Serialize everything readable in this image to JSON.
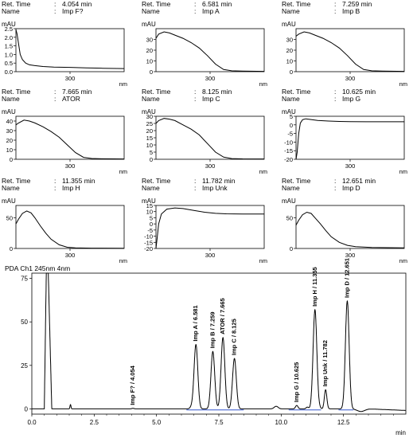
{
  "labels": {
    "ret_time": "Ret. Time",
    "name": "Name",
    "mau": "mAU",
    "nm": "nm",
    "x_tick": "300",
    "main_header": "PDA Ch1 245nm 4nm",
    "main_xlabel": "min"
  },
  "chart_data": [
    {
      "type": "line",
      "ret_time": "4.054 min",
      "name": "Imp F?",
      "xlim": [
        200,
        400
      ],
      "ylim": [
        0,
        2.5
      ],
      "yticks": [
        "0.0",
        "0.5",
        "1.0",
        "1.5",
        "2.0",
        "2.5"
      ],
      "x": [
        200,
        202,
        205,
        208,
        212,
        218,
        225,
        235,
        250,
        270,
        300,
        330,
        360,
        400
      ],
      "y": [
        2.45,
        2.2,
        1.6,
        1.0,
        0.7,
        0.5,
        0.4,
        0.35,
        0.3,
        0.27,
        0.25,
        0.22,
        0.2,
        0.18
      ]
    },
    {
      "type": "line",
      "ret_time": "6.581 min",
      "name": "Imp A",
      "xlim": [
        200,
        400
      ],
      "ylim": [
        0,
        40
      ],
      "yticks": [
        "0",
        "10",
        "20",
        "30"
      ],
      "x": [
        200,
        205,
        215,
        225,
        235,
        250,
        265,
        280,
        295,
        310,
        325,
        340,
        360,
        400
      ],
      "y": [
        31,
        35,
        37,
        36,
        34,
        31,
        27,
        22,
        15,
        7,
        2,
        0.8,
        0.5,
        0.3
      ]
    },
    {
      "type": "line",
      "ret_time": "7.259 min",
      "name": "Imp B",
      "xlim": [
        200,
        400
      ],
      "ylim": [
        0,
        40
      ],
      "yticks": [
        "0",
        "10",
        "20",
        "30"
      ],
      "x": [
        200,
        205,
        215,
        225,
        235,
        250,
        265,
        280,
        295,
        310,
        325,
        340,
        360,
        400
      ],
      "y": [
        33,
        35,
        37,
        36,
        34,
        31,
        27,
        22,
        15,
        7,
        2,
        0.8,
        0.5,
        0.3
      ]
    },
    {
      "type": "line",
      "ret_time": "7.665 min",
      "name": "ATOR",
      "xlim": [
        200,
        400
      ],
      "ylim": [
        0,
        45
      ],
      "yticks": [
        "0",
        "10",
        "20",
        "30",
        "40"
      ],
      "x": [
        200,
        205,
        215,
        225,
        235,
        250,
        265,
        280,
        295,
        310,
        325,
        340,
        360,
        400
      ],
      "y": [
        36,
        38,
        41,
        40,
        38,
        34,
        29,
        23,
        15,
        7,
        2,
        0.8,
        0.5,
        0.3
      ]
    },
    {
      "type": "line",
      "ret_time": "8.125 min",
      "name": "Imp C",
      "xlim": [
        200,
        400
      ],
      "ylim": [
        0,
        30
      ],
      "yticks": [
        "0",
        "5",
        "10",
        "15",
        "20",
        "25",
        "30"
      ],
      "x": [
        200,
        205,
        215,
        225,
        235,
        250,
        265,
        280,
        295,
        310,
        325,
        340,
        360,
        400
      ],
      "y": [
        25,
        27,
        28.5,
        28,
        27,
        24,
        21,
        17,
        11,
        5,
        1.5,
        0.5,
        0.3,
        0.2
      ]
    },
    {
      "type": "line",
      "ret_time": "10.625 min",
      "name": "Imp G",
      "xlim": [
        200,
        400
      ],
      "ylim": [
        -20,
        5
      ],
      "yticks": [
        "-20",
        "-15",
        "-10",
        "-5",
        "0",
        "5"
      ],
      "x": [
        200,
        202,
        205,
        208,
        212,
        218,
        225,
        240,
        260,
        280,
        300,
        330,
        360,
        400
      ],
      "y": [
        -20,
        -16,
        -5,
        1,
        3,
        3.5,
        3.2,
        2.6,
        2.2,
        2.0,
        1.9,
        1.8,
        1.8,
        1.8
      ]
    },
    {
      "type": "line",
      "ret_time": "11.355 min",
      "name": "Imp H",
      "xlim": [
        200,
        400
      ],
      "ylim": [
        0,
        70
      ],
      "yticks": [
        "0",
        "50"
      ],
      "x": [
        200,
        205,
        212,
        220,
        228,
        235,
        245,
        255,
        265,
        280,
        295,
        310,
        340,
        400
      ],
      "y": [
        40,
        48,
        57,
        61,
        58,
        50,
        37,
        25,
        15,
        6,
        2,
        1,
        0.5,
        0.3
      ]
    },
    {
      "type": "line",
      "ret_time": "11.782 min",
      "name": "Imp Unk",
      "xlim": [
        200,
        400
      ],
      "ylim": [
        -20,
        15
      ],
      "yticks": [
        "-20",
        "-15",
        "-10",
        "-5",
        "0",
        "5",
        "10",
        "15"
      ],
      "x": [
        200,
        202,
        205,
        210,
        220,
        235,
        250,
        270,
        290,
        310,
        330,
        360,
        400
      ],
      "y": [
        -20,
        -12,
        0,
        8,
        12,
        13,
        12.5,
        11,
        9.5,
        8.6,
        8.2,
        8.0,
        8.0
      ]
    },
    {
      "type": "line",
      "ret_time": "12.651 min",
      "name": "Imp D",
      "xlim": [
        200,
        400
      ],
      "ylim": [
        0,
        70
      ],
      "yticks": [
        "0",
        "50"
      ],
      "x": [
        200,
        205,
        212,
        220,
        228,
        235,
        245,
        255,
        265,
        280,
        295,
        310,
        340,
        400
      ],
      "y": [
        38,
        46,
        55,
        59,
        57,
        50,
        40,
        29,
        19,
        10,
        5,
        3,
        1.5,
        1
      ]
    },
    {
      "type": "line",
      "xlim": [
        0,
        15
      ],
      "ylim": [
        -3,
        78
      ],
      "xticks": [
        0.0,
        2.5,
        5.0,
        7.5,
        10.0,
        12.5
      ],
      "xtick_labels": [
        "0.0",
        "2.5",
        "5.0",
        "7.5",
        "10.0",
        "12.5"
      ],
      "yticks": [
        "0",
        "25",
        "50",
        "75"
      ],
      "baseline": 0,
      "solvent_front": {
        "x": [
          0.5,
          0.58,
          0.66,
          0.8
        ],
        "y": [
          0,
          78,
          78,
          0
        ]
      },
      "minor_peaks": [
        {
          "x": 0.75,
          "height": 3,
          "width": 0.02
        },
        {
          "x": 1.55,
          "height": 2.5,
          "width": 0.02
        },
        {
          "x": 6.4,
          "height": 1,
          "width": 0.06
        },
        {
          "x": 9.8,
          "height": 1.5,
          "width": 0.08
        },
        {
          "x": 11.05,
          "height": 1,
          "width": 0.05
        },
        {
          "x": 11.55,
          "height": 0.5,
          "width": 0.04
        }
      ],
      "peaks": [
        {
          "label": "Imp F? / 4.054",
          "rt": 4.054,
          "height": 0.3
        },
        {
          "label": "Imp A / 6.581",
          "rt": 6.581,
          "height": 37
        },
        {
          "label": "Imp B / 7.259",
          "rt": 7.259,
          "height": 33
        },
        {
          "label": "ATOR / 7.665",
          "rt": 7.665,
          "height": 41
        },
        {
          "label": "Imp C / 8.125",
          "rt": 8.125,
          "height": 29
        },
        {
          "label": "Imp G / 10.625",
          "rt": 10.625,
          "height": 2
        },
        {
          "label": "Imp H / 11.355",
          "rt": 11.355,
          "height": 57
        },
        {
          "label": "Imp Unk / 11.782",
          "rt": 11.782,
          "height": 11
        },
        {
          "label": "Imp D / 12.651",
          "rt": 12.651,
          "height": 62
        }
      ]
    }
  ],
  "colors": {
    "trace": "#000000",
    "baseline": "#3355cc",
    "axis": "#000000"
  }
}
